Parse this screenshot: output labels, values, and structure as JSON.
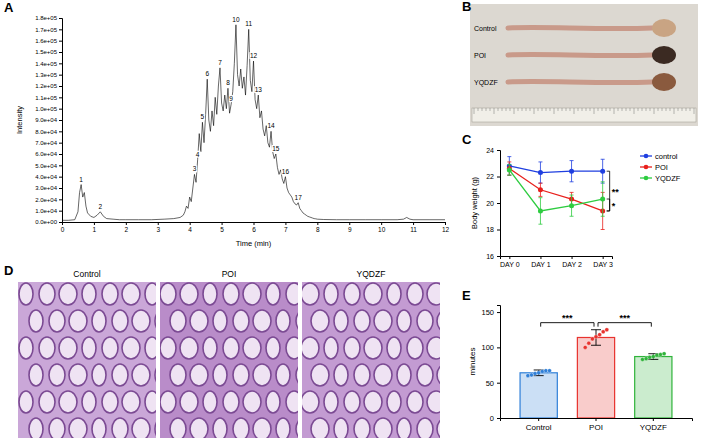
{
  "chart_data": [
    {
      "panel": "A",
      "type": "line",
      "x_label": "Time (min)",
      "y_label": "Intensity",
      "xlim": [
        0,
        12
      ],
      "xticks": [
        0,
        1,
        2,
        3,
        4,
        5,
        6,
        7,
        8,
        9,
        10,
        11,
        12
      ],
      "ylim": [
        0,
        180000
      ],
      "yticks": [
        {
          "value": 0,
          "label": "0.0e+00"
        },
        {
          "value": 10000,
          "label": "1.0e+04"
        },
        {
          "value": 20000,
          "label": "2.0e+04"
        },
        {
          "value": 30000,
          "label": "3.0e+04"
        },
        {
          "value": 40000,
          "label": "4.0e+04"
        },
        {
          "value": 50000,
          "label": "5.0e+04"
        },
        {
          "value": 60000,
          "label": "6.0e+04"
        },
        {
          "value": 70000,
          "label": "7.0e+04"
        },
        {
          "value": 80000,
          "label": "8.0e+04"
        },
        {
          "value": 90000,
          "label": "9.0e+04"
        },
        {
          "value": 100000,
          "label": "1.0e+05"
        },
        {
          "value": 110000,
          "label": "1.1e+05"
        },
        {
          "value": 120000,
          "label": "1.2e+05"
        },
        {
          "value": 130000,
          "label": "1.3e+05"
        },
        {
          "value": 140000,
          "label": "1.4e+05"
        },
        {
          "value": 150000,
          "label": "1.5e+05"
        },
        {
          "value": 160000,
          "label": "1.6e+05"
        },
        {
          "value": 170000,
          "label": "1.7e+05"
        },
        {
          "value": 180000,
          "label": "1.8e+05"
        }
      ],
      "x": [
        0,
        0.2,
        0.4,
        0.5,
        0.55,
        0.6,
        0.65,
        0.7,
        0.75,
        0.8,
        0.9,
        1.0,
        1.1,
        1.2,
        1.3,
        1.4,
        1.6,
        1.8,
        2.0,
        2.4,
        2.8,
        3.2,
        3.5,
        3.7,
        3.8,
        3.85,
        3.9,
        3.95,
        4.0,
        4.05,
        4.1,
        4.15,
        4.2,
        4.25,
        4.3,
        4.35,
        4.4,
        4.45,
        4.5,
        4.55,
        4.6,
        4.65,
        4.7,
        4.75,
        4.8,
        4.85,
        4.9,
        4.95,
        5.0,
        5.05,
        5.1,
        5.15,
        5.2,
        5.25,
        5.3,
        5.35,
        5.4,
        5.45,
        5.5,
        5.55,
        5.6,
        5.65,
        5.7,
        5.75,
        5.8,
        5.85,
        5.9,
        5.95,
        6.0,
        6.05,
        6.1,
        6.15,
        6.2,
        6.25,
        6.3,
        6.35,
        6.4,
        6.45,
        6.5,
        6.55,
        6.6,
        6.65,
        6.7,
        6.75,
        6.8,
        6.85,
        6.9,
        6.95,
        7.0,
        7.05,
        7.1,
        7.15,
        7.2,
        7.25,
        7.3,
        7.35,
        7.4,
        7.45,
        7.5,
        7.55,
        7.6,
        7.65,
        7.7,
        7.75,
        7.8,
        7.85,
        7.9,
        7.95,
        8.0,
        8.2,
        8.6,
        9.0,
        9.5,
        10.0,
        10.5,
        10.7,
        10.8,
        10.9,
        11.0,
        11.5,
        12.0
      ],
      "series": [
        {
          "color": "#000000",
          "values": [
            1500,
            1500,
            2000,
            9000,
            26000,
            33000,
            22000,
            26000,
            14000,
            8000,
            5000,
            4000,
            6000,
            9000,
            5000,
            3000,
            2500,
            2000,
            2000,
            2000,
            2000,
            2500,
            3000,
            4000,
            6000,
            9000,
            14000,
            12000,
            22000,
            18000,
            30000,
            42000,
            35000,
            55000,
            78000,
            62000,
            88000,
            70000,
            95000,
            126000,
            90000,
            80000,
            98000,
            85000,
            110000,
            95000,
            120000,
            136000,
            105000,
            98000,
            112000,
            100000,
            118000,
            96000,
            104000,
            115000,
            140000,
            174000,
            130000,
            120000,
            135000,
            118000,
            128000,
            112000,
            138000,
            170000,
            125000,
            115000,
            142000,
            108000,
            100000,
            112000,
            92000,
            98000,
            82000,
            76000,
            85000,
            70000,
            66000,
            80000,
            62000,
            56000,
            60000,
            48000,
            42000,
            46000,
            38000,
            34000,
            40000,
            30000,
            26000,
            24000,
            22000,
            18000,
            16000,
            15000,
            17000,
            12000,
            10000,
            8000,
            7000,
            6000,
            5000,
            4500,
            4000,
            3500,
            3000,
            2800,
            2500,
            2200,
            2000,
            2000,
            2000,
            2000,
            2000,
            2500,
            4000,
            2500,
            2000,
            2000,
            2000
          ]
        }
      ],
      "annotations": [
        {
          "text": "1",
          "x": 0.6,
          "y": 33000
        },
        {
          "text": "2",
          "x": 1.2,
          "y": 9000
        },
        {
          "text": "3",
          "x": 4.15,
          "y": 42000
        },
        {
          "text": "4",
          "x": 4.25,
          "y": 55000
        },
        {
          "text": "5",
          "x": 4.4,
          "y": 88000
        },
        {
          "text": "6",
          "x": 4.55,
          "y": 126000
        },
        {
          "text": "7",
          "x": 4.95,
          "y": 136000
        },
        {
          "text": "8",
          "x": 5.2,
          "y": 118000
        },
        {
          "text": "9",
          "x": 5.3,
          "y": 104000
        },
        {
          "text": "10",
          "x": 5.45,
          "y": 174000
        },
        {
          "text": "11",
          "x": 5.85,
          "y": 170000
        },
        {
          "text": "12",
          "x": 6.0,
          "y": 142000
        },
        {
          "text": "13",
          "x": 6.15,
          "y": 112000
        },
        {
          "text": "14",
          "x": 6.55,
          "y": 80000
        },
        {
          "text": "15",
          "x": 6.7,
          "y": 60000
        },
        {
          "text": "16",
          "x": 7.0,
          "y": 40000
        },
        {
          "text": "17",
          "x": 7.4,
          "y": 17000
        }
      ]
    },
    {
      "panel": "C",
      "type": "line",
      "y_label": "Body weight (g)",
      "categories": [
        "DAY 0",
        "DAY 1",
        "DAY 2",
        "DAY 3"
      ],
      "ylim": [
        16,
        24
      ],
      "yticks": [
        16,
        18,
        20,
        22,
        24
      ],
      "legend": "right",
      "marker": "circle",
      "series": [
        {
          "name": "control",
          "color": "#1f3fe0",
          "values": [
            22.8,
            22.3,
            22.4,
            22.4
          ],
          "errors": [
            0.7,
            0.8,
            0.8,
            0.9
          ]
        },
        {
          "name": "POI",
          "color": "#e8201c",
          "values": [
            22.6,
            21.0,
            20.3,
            19.4
          ],
          "errors": [
            0.5,
            0.5,
            0.5,
            1.4
          ]
        },
        {
          "name": "YQDZF",
          "color": "#2ecc40",
          "values": [
            22.5,
            19.4,
            19.8,
            20.3
          ],
          "errors": [
            0.4,
            1.0,
            0.8,
            1.3
          ]
        }
      ],
      "annotations": [
        {
          "text": "**",
          "y": [
            19.4,
            22.4
          ]
        },
        {
          "text": "*",
          "y": [
            19.4,
            20.3
          ]
        }
      ]
    },
    {
      "panel": "E",
      "type": "bar",
      "y_label": "minutes",
      "categories": [
        "Control",
        "POI",
        "YQDZF"
      ],
      "values": [
        64,
        114,
        87
      ],
      "errors": [
        4,
        11,
        4
      ],
      "points": [
        [
          60,
          61,
          63,
          64,
          66,
          67,
          67
        ],
        [
          100,
          106,
          112,
          115,
          118,
          122,
          125
        ],
        [
          83,
          84,
          86,
          87,
          89,
          90,
          91
        ]
      ],
      "colors": [
        "#2f7fd8",
        "#e8332e",
        "#2fb33a"
      ],
      "ylim": [
        0,
        160
      ],
      "yticks": [
        0,
        50,
        100,
        150
      ],
      "annotations": [
        {
          "text": "***",
          "between": [
            0,
            1
          ],
          "y": 135
        },
        {
          "text": "***",
          "between": [
            1,
            2
          ],
          "y": 135
        }
      ]
    }
  ],
  "panels": [
    {
      "panel": "B",
      "labels": [
        "Control",
        "POI",
        "YQDZF"
      ]
    },
    {
      "panel": "D",
      "titles": [
        "Control",
        "POI",
        "YQDZF"
      ]
    }
  ]
}
